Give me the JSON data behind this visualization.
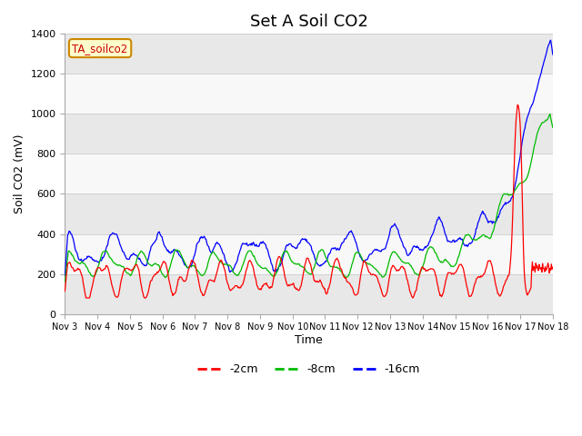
{
  "title": "Set A Soil CO2",
  "ylabel": "Soil CO2 (mV)",
  "xlabel": "Time",
  "annotation_text": "TA_soilco2",
  "annotation_bg": "#ffffcc",
  "annotation_border": "#cc8800",
  "ylim": [
    0,
    1400
  ],
  "yticks": [
    0,
    200,
    400,
    600,
    800,
    1000,
    1200,
    1400
  ],
  "xtick_labels": [
    "Nov 3",
    "Nov 4",
    "Nov 5",
    "Nov 6",
    "Nov 7",
    "Nov 8",
    "Nov 9",
    "Nov 10",
    "Nov 11",
    "Nov 12",
    "Nov 13",
    "Nov 14",
    "Nov 15",
    "Nov 16",
    "Nov 17",
    "Nov 18"
  ],
  "series": {
    "-2cm": {
      "color": "#ff0000",
      "label": "-2cm"
    },
    "-8cm": {
      "color": "#00bb00",
      "label": "-8cm"
    },
    "-16cm": {
      "color": "#0000ff",
      "label": "-16cm"
    }
  },
  "band_colors": [
    "#e8e8e8",
    "#f8f8f8"
  ],
  "fig_bg": "#ffffff",
  "title_fontsize": 13,
  "axis_label_fontsize": 9,
  "tick_fontsize": 8
}
